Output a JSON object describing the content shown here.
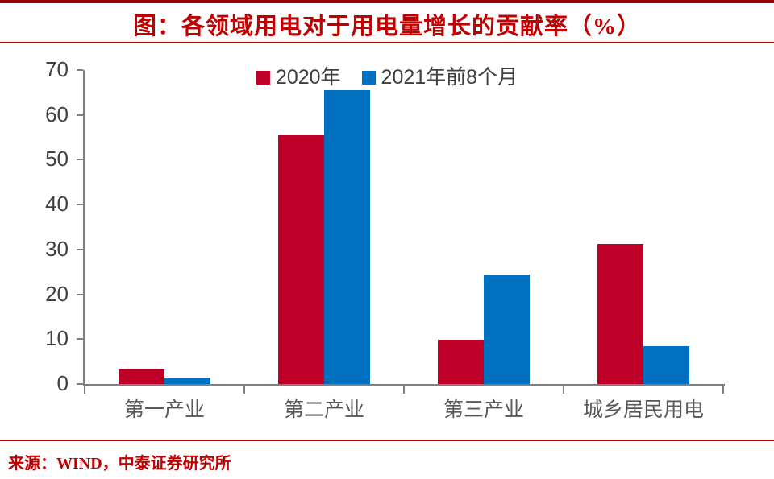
{
  "title": "图：各领域用电对于用电量增长的贡献率（%）",
  "source": "来源：WIND，中泰证券研究所",
  "colors": {
    "series_red": "#BE0028",
    "series_blue": "#0070C0",
    "title_red": "#C00000",
    "rule_dark_red": "#990000",
    "axis_gray": "#7F7F7F",
    "tick_text_gray": "#404040",
    "category_text_gray": "#595959"
  },
  "chart_data": {
    "type": "bar",
    "categories": [
      "第一产业",
      "第二产业",
      "第三产业",
      "城乡居民用电"
    ],
    "series": [
      {
        "name": "2020年",
        "color": "#BE0028",
        "values": [
          3.5,
          55.5,
          9.9,
          31.2
        ]
      },
      {
        "name": "2021年前8个月",
        "color": "#0070C0",
        "values": [
          1.5,
          65.6,
          24.5,
          8.4
        ]
      }
    ],
    "title": "图：各领域用电对于用电量增长的贡献率（%）",
    "xlabel": "",
    "ylabel": "",
    "ylim": [
      0,
      70
    ],
    "yticks": [
      0,
      10,
      20,
      30,
      40,
      50,
      60,
      70
    ],
    "legend_position": "top-center",
    "grid": false
  }
}
